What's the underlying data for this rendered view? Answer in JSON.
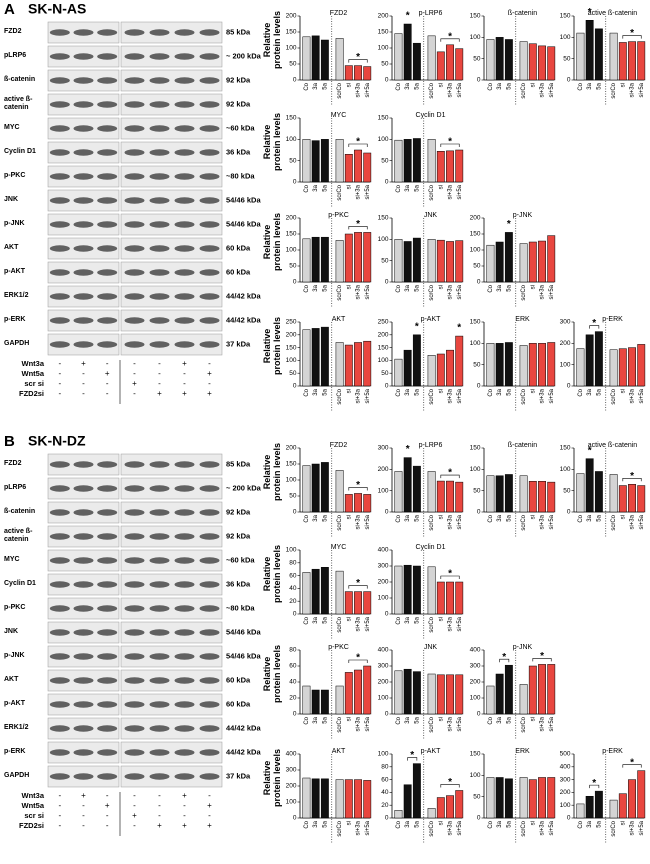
{
  "panels": [
    {
      "label": "A",
      "cell_line": "SK-N-AS",
      "ylabel": "Relative protein levels",
      "categories": [
        "Co",
        "3a",
        "5a",
        "scrCo",
        "si",
        "si+3a",
        "si+5a"
      ],
      "colors": [
        "#d4d4d4",
        "#111111",
        "#111111",
        "#d4d4d4",
        "#e8463f",
        "#e8463f",
        "#e8463f"
      ],
      "blots": [
        {
          "name": "FZD2",
          "size": "85 kDa"
        },
        {
          "name": "pLRP6",
          "size": "~ 200 kDa"
        },
        {
          "name": "ß-catenin",
          "size": "92 kDa"
        },
        {
          "name": "active ß-catenin",
          "size": "92 kDa"
        },
        {
          "name": "MYC",
          "size": "~60 kDa"
        },
        {
          "name": "Cyclin D1",
          "size": "36 kDa"
        },
        {
          "name": "p-PKC",
          "size": "~80 kDa"
        },
        {
          "name": "JNK",
          "size": "54/46 kDa"
        },
        {
          "name": "p-JNK",
          "size": "54/46 kDa"
        },
        {
          "name": "AKT",
          "size": "60 kDa"
        },
        {
          "name": "p-AKT",
          "size": "60 kDa"
        },
        {
          "name": "ERK1/2",
          "size": "44/42 kDa"
        },
        {
          "name": "p-ERK",
          "size": "44/42 kDa"
        },
        {
          "name": "GAPDH",
          "size": "37 kDa"
        }
      ],
      "treatments": [
        {
          "name": "Wnt3a",
          "lanes": [
            "-",
            "+",
            "-",
            "-",
            "-",
            "+",
            "-"
          ]
        },
        {
          "name": "Wnt5a",
          "lanes": [
            "-",
            "-",
            "+",
            "-",
            "-",
            "-",
            "+"
          ]
        },
        {
          "name": "scr si",
          "lanes": [
            "-",
            "-",
            "-",
            "+",
            "-",
            "-",
            "-"
          ]
        },
        {
          "name": "FZD2si",
          "lanes": [
            "-",
            "-",
            "-",
            "-",
            "+",
            "+",
            "+"
          ]
        }
      ],
      "charts": [
        {
          "type": "bar",
          "title": "FZD2",
          "values": [
            135,
            138,
            125,
            130,
            45,
            45,
            42
          ],
          "ylim": [
            0,
            200
          ],
          "yticks": [
            0,
            50,
            100,
            150,
            200
          ],
          "significance": [
            {
              "label": "*",
              "span": [
                "si",
                "si+5a"
              ]
            }
          ]
        },
        {
          "type": "bar",
          "title": "p-LRP6",
          "values": [
            145,
            175,
            115,
            138,
            88,
            110,
            98
          ],
          "ylim": [
            0,
            200
          ],
          "yticks": [
            0,
            50,
            100,
            150,
            200
          ],
          "significance": [
            {
              "label": "*",
              "span": [
                "3a",
                "3a"
              ]
            },
            {
              "label": "*",
              "span": [
                "si",
                "si+5a"
              ]
            }
          ]
        },
        {
          "type": "bar",
          "title": "ß-catenin",
          "values": [
            95,
            100,
            95,
            90,
            85,
            80,
            78
          ],
          "ylim": [
            0,
            150
          ],
          "yticks": [
            0,
            50,
            100,
            150
          ],
          "significance": []
        },
        {
          "type": "bar",
          "title": "active ß-catenin",
          "values": [
            110,
            140,
            120,
            110,
            88,
            90,
            90
          ],
          "ylim": [
            0,
            150
          ],
          "yticks": [
            0,
            50,
            100,
            150
          ],
          "significance": [
            {
              "label": "*",
              "span": [
                "3a",
                "3a"
              ]
            },
            {
              "label": "*",
              "span": [
                "si",
                "si+5a"
              ]
            }
          ]
        },
        {
          "type": "bar",
          "title": "MYC",
          "values": [
            100,
            97,
            100,
            100,
            65,
            75,
            68
          ],
          "ylim": [
            0,
            150
          ],
          "yticks": [
            0,
            50,
            100,
            150
          ],
          "significance": [
            {
              "label": "*",
              "span": [
                "si",
                "si+5a"
              ]
            }
          ]
        },
        {
          "type": "bar",
          "title": "Cyclin D1",
          "values": [
            98,
            100,
            102,
            100,
            72,
            73,
            75
          ],
          "ylim": [
            0,
            150
          ],
          "yticks": [
            0,
            50,
            100,
            150
          ],
          "significance": [
            {
              "label": "*",
              "span": [
                "si",
                "si+5a"
              ]
            }
          ]
        },
        {
          "type": "bar",
          "title": "p-PKC",
          "values": [
            135,
            140,
            140,
            130,
            150,
            155,
            155
          ],
          "ylim": [
            0,
            200
          ],
          "yticks": [
            0,
            50,
            100,
            150,
            200
          ],
          "significance": [
            {
              "label": "*",
              "span": [
                "si",
                "si+5a"
              ]
            }
          ]
        },
        {
          "type": "bar",
          "title": "JNK",
          "values": [
            100,
            95,
            103,
            100,
            98,
            95,
            97
          ],
          "ylim": [
            0,
            150
          ],
          "yticks": [
            0,
            50,
            100,
            150
          ],
          "significance": []
        },
        {
          "type": "bar",
          "title": "p-JNK",
          "values": [
            115,
            125,
            155,
            120,
            125,
            128,
            145
          ],
          "ylim": [
            0,
            200
          ],
          "yticks": [
            0,
            50,
            100,
            150,
            200
          ],
          "significance": [
            {
              "label": "*",
              "span": [
                "5a",
                "5a"
              ]
            }
          ]
        },
        {
          "type": "bar",
          "title": "AKT",
          "values": [
            220,
            225,
            230,
            170,
            160,
            170,
            175
          ],
          "ylim": [
            0,
            250
          ],
          "yticks": [
            0,
            50,
            100,
            150,
            200,
            250
          ],
          "significance": []
        },
        {
          "type": "bar",
          "title": "p-AKT",
          "values": [
            105,
            140,
            200,
            120,
            125,
            140,
            195
          ],
          "ylim": [
            0,
            250
          ],
          "yticks": [
            0,
            50,
            100,
            150,
            200,
            250
          ],
          "significance": [
            {
              "label": "*",
              "span": [
                "5a",
                "5a"
              ]
            },
            {
              "label": "*",
              "span": [
                "si+5a",
                "si+5a"
              ]
            }
          ]
        },
        {
          "type": "bar",
          "title": "ERK",
          "values": [
            100,
            100,
            102,
            95,
            100,
            100,
            102
          ],
          "ylim": [
            0,
            150
          ],
          "yticks": [
            0,
            50,
            100,
            150
          ],
          "significance": []
        },
        {
          "type": "bar",
          "title": "p-ERK",
          "values": [
            175,
            240,
            255,
            170,
            175,
            180,
            195
          ],
          "ylim": [
            0,
            300
          ],
          "yticks": [
            0,
            100,
            200,
            300
          ],
          "significance": [
            {
              "label": "*",
              "span": [
                "3a",
                "5a"
              ]
            }
          ]
        }
      ]
    },
    {
      "label": "B",
      "cell_line": "SK-N-DZ",
      "ylabel": "Relative protein levels",
      "categories": [
        "Co",
        "3a",
        "5a",
        "scrCo",
        "si",
        "si+3a",
        "si+5a"
      ],
      "colors": [
        "#d4d4d4",
        "#111111",
        "#111111",
        "#d4d4d4",
        "#e8463f",
        "#e8463f",
        "#e8463f"
      ],
      "blots": [
        {
          "name": "FZD2",
          "size": "85 kDa"
        },
        {
          "name": "pLRP6",
          "size": "~ 200 kDa"
        },
        {
          "name": "ß-catenin",
          "size": "92 kDa"
        },
        {
          "name": "active ß-catenin",
          "size": "92 kDa"
        },
        {
          "name": "MYC",
          "size": "~60 kDa"
        },
        {
          "name": "Cyclin D1",
          "size": "36 kDa"
        },
        {
          "name": "p-PKC",
          "size": "~80 kDa"
        },
        {
          "name": "JNK",
          "size": "54/46 kDa"
        },
        {
          "name": "p-JNK",
          "size": "54/46 kDa"
        },
        {
          "name": "AKT",
          "size": "60 kDa"
        },
        {
          "name": "p-AKT",
          "size": "60 kDa"
        },
        {
          "name": "ERK1/2",
          "size": "44/42 kDa"
        },
        {
          "name": "p-ERK",
          "size": "44/42 kDa"
        },
        {
          "name": "GAPDH",
          "size": "37 kDa"
        }
      ],
      "treatments": [
        {
          "name": "Wnt3a",
          "lanes": [
            "-",
            "+",
            "-",
            "-",
            "-",
            "+",
            "-"
          ]
        },
        {
          "name": "Wnt5a",
          "lanes": [
            "-",
            "-",
            "+",
            "-",
            "-",
            "-",
            "+"
          ]
        },
        {
          "name": "scr si",
          "lanes": [
            "-",
            "-",
            "-",
            "+",
            "-",
            "-",
            "-"
          ]
        },
        {
          "name": "FZD2si",
          "lanes": [
            "-",
            "-",
            "-",
            "-",
            "+",
            "+",
            "+"
          ]
        }
      ],
      "charts": [
        {
          "type": "bar",
          "title": "FZD2",
          "values": [
            145,
            150,
            155,
            130,
            55,
            58,
            55
          ],
          "ylim": [
            0,
            200
          ],
          "yticks": [
            0,
            50,
            100,
            150,
            200
          ],
          "significance": [
            {
              "label": "*",
              "span": [
                "si",
                "si+5a"
              ]
            }
          ]
        },
        {
          "type": "bar",
          "title": "p-LRP6",
          "values": [
            190,
            255,
            215,
            190,
            145,
            145,
            140
          ],
          "ylim": [
            0,
            300
          ],
          "yticks": [
            0,
            100,
            200,
            300
          ],
          "significance": [
            {
              "label": "*",
              "span": [
                "3a",
                "3a"
              ]
            },
            {
              "label": "*",
              "span": [
                "si",
                "si+5a"
              ]
            }
          ]
        },
        {
          "type": "bar",
          "title": "ß-catenin",
          "values": [
            85,
            85,
            88,
            85,
            72,
            72,
            70
          ],
          "ylim": [
            0,
            150
          ],
          "yticks": [
            0,
            50,
            100,
            150
          ],
          "significance": []
        },
        {
          "type": "bar",
          "title": "active ß-catenin",
          "values": [
            90,
            125,
            95,
            88,
            62,
            65,
            62
          ],
          "ylim": [
            0,
            150
          ],
          "yticks": [
            0,
            50,
            100,
            150
          ],
          "significance": [
            {
              "label": "*",
              "span": [
                "3a",
                "3a"
              ]
            },
            {
              "label": "*",
              "span": [
                "si",
                "si+5a"
              ]
            }
          ]
        },
        {
          "type": "bar",
          "title": "MYC",
          "values": [
            65,
            70,
            73,
            67,
            35,
            35,
            35
          ],
          "ylim": [
            0,
            100
          ],
          "yticks": [
            0,
            20,
            40,
            60,
            80,
            100
          ],
          "significance": [
            {
              "label": "*",
              "span": [
                "si",
                "si+5a"
              ]
            }
          ]
        },
        {
          "type": "bar",
          "title": "Cyclin D1",
          "values": [
            300,
            305,
            300,
            295,
            200,
            200,
            200
          ],
          "ylim": [
            0,
            400
          ],
          "yticks": [
            0,
            100,
            200,
            300,
            400
          ],
          "significance": [
            {
              "label": "*",
              "span": [
                "si",
                "si+5a"
              ]
            }
          ]
        },
        {
          "type": "bar",
          "title": "p-PKC",
          "values": [
            35,
            30,
            30,
            35,
            52,
            55,
            60
          ],
          "ylim": [
            0,
            80
          ],
          "yticks": [
            0,
            20,
            40,
            60,
            80
          ],
          "significance": [
            {
              "label": "*",
              "span": [
                "si",
                "si+5a"
              ]
            }
          ]
        },
        {
          "type": "bar",
          "title": "JNK",
          "values": [
            270,
            280,
            265,
            250,
            245,
            245,
            245
          ],
          "ylim": [
            0,
            400
          ],
          "yticks": [
            0,
            100,
            200,
            300,
            400
          ],
          "significance": []
        },
        {
          "type": "bar",
          "title": "p-JNK",
          "values": [
            175,
            250,
            305,
            185,
            300,
            310,
            310
          ],
          "ylim": [
            0,
            400
          ],
          "yticks": [
            0,
            100,
            200,
            300,
            400
          ],
          "significance": [
            {
              "label": "*",
              "span": [
                "3a",
                "5a"
              ]
            },
            {
              "label": "*",
              "span": [
                "si",
                "si+5a"
              ]
            }
          ]
        },
        {
          "type": "bar",
          "title": "AKT",
          "values": [
            250,
            245,
            245,
            240,
            240,
            240,
            235
          ],
          "ylim": [
            0,
            400
          ],
          "yticks": [
            0,
            100,
            200,
            300,
            400
          ],
          "significance": []
        },
        {
          "type": "bar",
          "title": "p-AKT",
          "values": [
            12,
            52,
            85,
            15,
            32,
            35,
            43
          ],
          "ylim": [
            0,
            100
          ],
          "yticks": [
            0,
            20,
            40,
            60,
            80,
            100
          ],
          "significance": [
            {
              "label": "*",
              "span": [
                "3a",
                "5a"
              ]
            },
            {
              "label": "*",
              "span": [
                "si",
                "si+5a"
              ]
            }
          ]
        },
        {
          "type": "bar",
          "title": "ERK",
          "values": [
            95,
            95,
            92,
            95,
            90,
            95,
            95
          ],
          "ylim": [
            0,
            150
          ],
          "yticks": [
            0,
            50,
            100,
            150
          ],
          "significance": []
        },
        {
          "type": "bar",
          "title": "p-ERK",
          "values": [
            110,
            170,
            210,
            140,
            190,
            300,
            370
          ],
          "ylim": [
            0,
            500
          ],
          "yticks": [
            0,
            100,
            200,
            300,
            400,
            500
          ],
          "significance": [
            {
              "label": "*",
              "span": [
                "3a",
                "5a"
              ]
            },
            {
              "label": "*",
              "span": [
                "si",
                "si+5a"
              ]
            }
          ]
        }
      ]
    }
  ]
}
